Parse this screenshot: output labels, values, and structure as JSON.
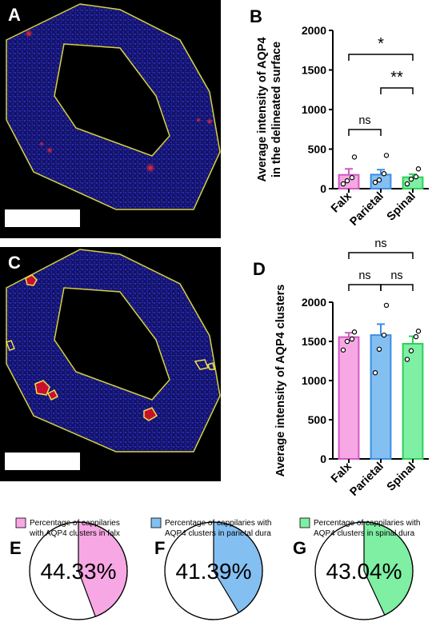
{
  "panels": {
    "a": "A",
    "b": "B",
    "c": "C",
    "d": "D",
    "e": "E",
    "f": "F",
    "g": "G"
  },
  "colors": {
    "falx": "#f7a8e4",
    "parietal": "#84bff2",
    "spinal": "#7eefa3",
    "falx_edge": "#d158c4",
    "parietal_edge": "#3a8ee3",
    "spinal_edge": "#2fcf57",
    "outline": "#d8d23c",
    "tissue": "#1a1a7a"
  },
  "chart_data": [
    {
      "type": "bar",
      "panel": "B",
      "categories": [
        "Falx",
        "Parietal",
        "Spinal"
      ],
      "values": [
        175,
        178,
        145
      ],
      "errors": [
        75,
        62,
        38
      ],
      "points": [
        [
          60,
          100,
          140,
          400
        ],
        [
          80,
          110,
          190,
          420
        ],
        [
          60,
          120,
          150,
          250
        ]
      ],
      "ylabel_lines": [
        "Average intensity of AQP4",
        "in the delineated surface"
      ],
      "ylim": [
        0,
        2000
      ],
      "yticks": [
        0,
        500,
        1000,
        1500,
        2000
      ],
      "significance": [
        {
          "from": "Falx",
          "to": "Parietal",
          "label": "ns"
        },
        {
          "from": "Parietal",
          "to": "Spinal",
          "label": "**"
        },
        {
          "from": "Falx",
          "to": "Spinal",
          "label": "*"
        }
      ]
    },
    {
      "type": "bar",
      "panel": "D",
      "categories": [
        "Falx",
        "Parietal",
        "Spinal"
      ],
      "values": [
        1555,
        1580,
        1470
      ],
      "errors": [
        55,
        140,
        95
      ],
      "points": [
        [
          1390,
          1500,
          1530,
          1620
        ],
        [
          1100,
          1400,
          1580,
          1960
        ],
        [
          1270,
          1380,
          1560,
          1630
        ]
      ],
      "ylabel": "Average intensity of AQP4 clusters",
      "ylim": [
        0,
        2000
      ],
      "yticks": [
        0,
        500,
        1000,
        1500,
        2000
      ],
      "significance": [
        {
          "from": "Falx",
          "to": "Parietal",
          "label": "ns"
        },
        {
          "from": "Parietal",
          "to": "Spinal",
          "label": "ns"
        },
        {
          "from": "Falx",
          "to": "Spinal",
          "label": "ns"
        }
      ]
    },
    {
      "type": "pie",
      "panel": "E",
      "value_percent": 44.33,
      "label": "44.33%",
      "legend_lines": [
        "Percentage of cappilaries",
        "with AQP4 clusters in falx"
      ]
    },
    {
      "type": "pie",
      "panel": "F",
      "value_percent": 41.39,
      "label": "41.39%",
      "legend_lines": [
        "Percentage of cappilaries with",
        "AQP4 clusters in parietal dura"
      ]
    },
    {
      "type": "pie",
      "panel": "G",
      "value_percent": 43.04,
      "label": "43.04%",
      "legend_lines": [
        "Percentage of cappilaries with",
        "AQP4 clusters in spinal dura"
      ]
    }
  ]
}
